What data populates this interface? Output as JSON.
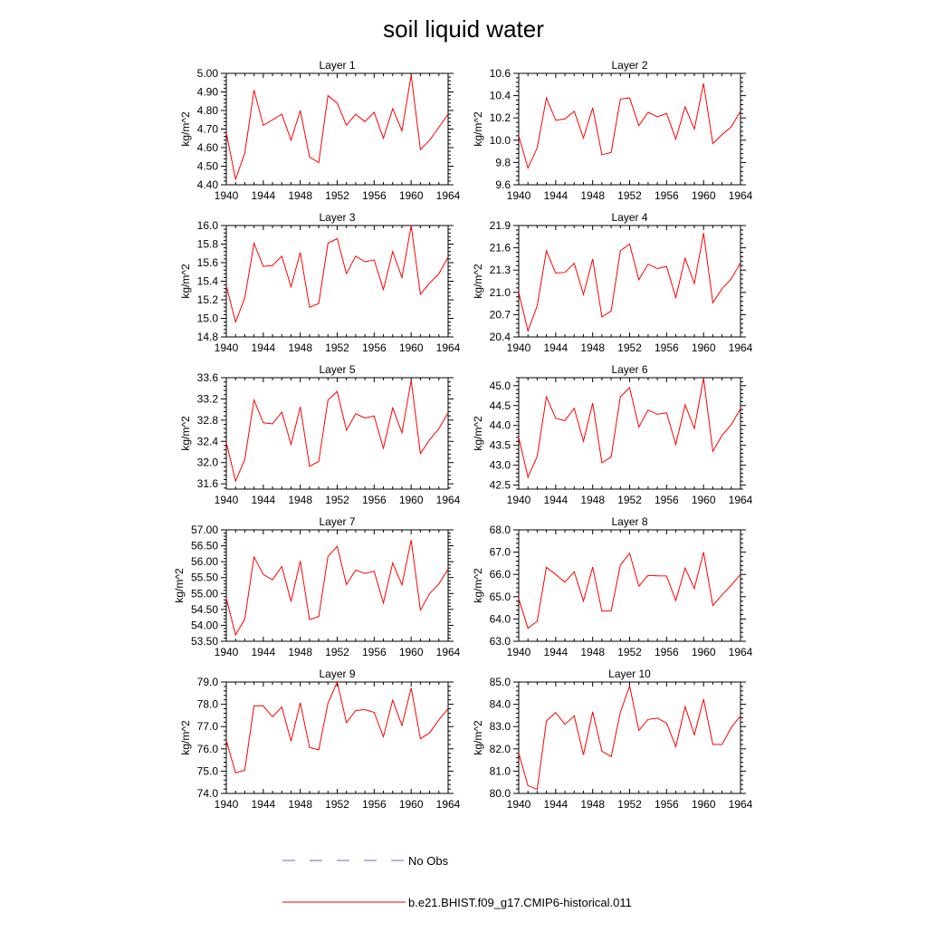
{
  "title": "soil liquid water",
  "legend": {
    "entries": [
      {
        "label": "No Obs",
        "color": "#6a6acd",
        "style": "dashed"
      },
      {
        "label": "b.e21.BHIST.f09_g17.CMIP6-historical.011",
        "color": "#ff0000",
        "style": "solid"
      }
    ]
  },
  "chart_data": [
    {
      "type": "line",
      "title": "Layer 1",
      "ylabel": "kg/m^2",
      "xlim": [
        1940,
        1964
      ],
      "ylim": [
        4.4,
        5.0
      ],
      "xticks": [
        "1940",
        "1944",
        "1948",
        "1952",
        "1956",
        "1960",
        "1964"
      ],
      "yticks": [
        "4.40",
        "4.50",
        "4.60",
        "4.70",
        "4.80",
        "4.90",
        "5.00"
      ],
      "series": [
        {
          "name": "b.e21.BHIST.f09_g17.CMIP6-historical.011",
          "color": "#ff0000",
          "x": [
            1940,
            1941,
            1942,
            1943,
            1944,
            1945,
            1946,
            1947,
            1948,
            1949,
            1950,
            1951,
            1952,
            1953,
            1954,
            1955,
            1956,
            1957,
            1958,
            1959,
            1960,
            1961,
            1962,
            1963,
            1964
          ],
          "y": [
            4.68,
            4.43,
            4.57,
            4.91,
            4.72,
            4.75,
            4.78,
            4.64,
            4.8,
            4.55,
            4.52,
            4.88,
            4.84,
            4.72,
            4.78,
            4.74,
            4.79,
            4.65,
            4.81,
            4.69,
            4.99,
            4.59,
            4.64,
            4.71,
            4.78
          ]
        }
      ]
    },
    {
      "type": "line",
      "title": "Layer 2",
      "ylabel": "kg/m^2",
      "xlim": [
        1940,
        1964
      ],
      "ylim": [
        9.6,
        10.6
      ],
      "xticks": [
        "1940",
        "1944",
        "1948",
        "1952",
        "1956",
        "1960",
        "1964"
      ],
      "yticks": [
        "9.6",
        "9.8",
        "10.0",
        "10.2",
        "10.4",
        "10.6"
      ],
      "series": [
        {
          "name": "b.e21.BHIST.f09_g17.CMIP6-historical.011",
          "color": "#ff0000",
          "x": [
            1940,
            1941,
            1942,
            1943,
            1944,
            1945,
            1946,
            1947,
            1948,
            1949,
            1950,
            1951,
            1952,
            1953,
            1954,
            1955,
            1956,
            1957,
            1958,
            1959,
            1960,
            1961,
            1962,
            1963,
            1964
          ],
          "y": [
            10.04,
            9.75,
            9.93,
            10.38,
            10.18,
            10.19,
            10.26,
            10.02,
            10.29,
            9.87,
            9.89,
            10.37,
            10.38,
            10.13,
            10.25,
            10.21,
            10.24,
            10.01,
            10.3,
            10.1,
            10.51,
            9.97,
            10.05,
            10.12,
            10.26
          ]
        }
      ]
    },
    {
      "type": "line",
      "title": "Layer 3",
      "ylabel": "kg/m^2",
      "xlim": [
        1940,
        1964
      ],
      "ylim": [
        14.8,
        16.0
      ],
      "xticks": [
        "1940",
        "1944",
        "1948",
        "1952",
        "1956",
        "1960",
        "1964"
      ],
      "yticks": [
        "14.8",
        "15.0",
        "15.2",
        "15.4",
        "15.6",
        "15.8",
        "16.0"
      ],
      "series": [
        {
          "name": "b.e21.BHIST.f09_g17.CMIP6-historical.011",
          "color": "#ff0000",
          "x": [
            1940,
            1941,
            1942,
            1943,
            1944,
            1945,
            1946,
            1947,
            1948,
            1949,
            1950,
            1951,
            1952,
            1953,
            1954,
            1955,
            1956,
            1957,
            1958,
            1959,
            1960,
            1961,
            1962,
            1963,
            1964
          ],
          "y": [
            15.35,
            14.96,
            15.22,
            15.81,
            15.56,
            15.57,
            15.67,
            15.34,
            15.71,
            15.12,
            15.16,
            15.81,
            15.86,
            15.48,
            15.67,
            15.61,
            15.63,
            15.31,
            15.72,
            15.44,
            16.0,
            15.26,
            15.38,
            15.48,
            15.66
          ]
        }
      ]
    },
    {
      "type": "line",
      "title": "Layer 4",
      "ylabel": "kg/m^2",
      "xlim": [
        1940,
        1964
      ],
      "ylim": [
        20.4,
        21.9
      ],
      "xticks": [
        "1940",
        "1944",
        "1948",
        "1952",
        "1956",
        "1960",
        "1964"
      ],
      "yticks": [
        "20.4",
        "20.7",
        "21.0",
        "21.3",
        "21.6",
        "21.9"
      ],
      "series": [
        {
          "name": "b.e21.BHIST.f09_g17.CMIP6-historical.011",
          "color": "#ff0000",
          "x": [
            1940,
            1941,
            1942,
            1943,
            1944,
            1945,
            1946,
            1947,
            1948,
            1949,
            1950,
            1951,
            1952,
            1953,
            1954,
            1955,
            1956,
            1957,
            1958,
            1959,
            1960,
            1961,
            1962,
            1963,
            1964
          ],
          "y": [
            21.0,
            20.48,
            20.82,
            21.56,
            21.26,
            21.27,
            21.39,
            20.97,
            21.45,
            20.67,
            20.75,
            21.56,
            21.65,
            21.17,
            21.38,
            21.32,
            21.35,
            20.93,
            21.46,
            21.12,
            21.8,
            20.86,
            21.05,
            21.18,
            21.4
          ]
        }
      ]
    },
    {
      "type": "line",
      "title": "Layer 5",
      "ylabel": "kg/m^2",
      "xlim": [
        1940,
        1964
      ],
      "ylim": [
        31.5,
        33.6
      ],
      "xticks": [
        "1940",
        "1944",
        "1948",
        "1952",
        "1956",
        "1960",
        "1964"
      ],
      "yticks": [
        "31.6",
        "32.0",
        "32.4",
        "32.8",
        "33.2",
        "33.6"
      ],
      "series": [
        {
          "name": "b.e21.BHIST.f09_g17.CMIP6-historical.011",
          "color": "#ff0000",
          "x": [
            1940,
            1941,
            1942,
            1943,
            1944,
            1945,
            1946,
            1947,
            1948,
            1949,
            1950,
            1951,
            1952,
            1953,
            1954,
            1955,
            1956,
            1957,
            1958,
            1959,
            1960,
            1961,
            1962,
            1963,
            1964
          ],
          "y": [
            32.38,
            31.65,
            32.06,
            33.18,
            32.75,
            32.73,
            32.95,
            32.34,
            33.05,
            31.93,
            32.02,
            33.18,
            33.34,
            32.61,
            32.92,
            32.84,
            32.88,
            32.27,
            33.03,
            32.56,
            33.55,
            32.17,
            32.43,
            32.64,
            32.94
          ]
        }
      ]
    },
    {
      "type": "line",
      "title": "Layer 6",
      "ylabel": "kg/m^2",
      "xlim": [
        1940,
        1964
      ],
      "ylim": [
        42.4,
        45.2
      ],
      "xticks": [
        "1940",
        "1944",
        "1948",
        "1952",
        "1956",
        "1960",
        "1964"
      ],
      "yticks": [
        "42.5",
        "43.0",
        "43.5",
        "44.0",
        "44.5",
        "45.0"
      ],
      "series": [
        {
          "name": "b.e21.BHIST.f09_g17.CMIP6-historical.011",
          "color": "#ff0000",
          "x": [
            1940,
            1941,
            1942,
            1943,
            1944,
            1945,
            1946,
            1947,
            1948,
            1949,
            1950,
            1951,
            1952,
            1953,
            1954,
            1955,
            1956,
            1957,
            1958,
            1959,
            1960,
            1961,
            1962,
            1963,
            1964
          ],
          "y": [
            43.7,
            42.7,
            43.22,
            44.72,
            44.18,
            44.12,
            44.43,
            43.6,
            44.56,
            43.06,
            43.21,
            44.72,
            44.95,
            43.96,
            44.39,
            44.28,
            44.32,
            43.52,
            44.52,
            43.92,
            45.19,
            43.35,
            43.75,
            44.02,
            44.42
          ]
        }
      ]
    },
    {
      "type": "line",
      "title": "Layer 7",
      "ylabel": "kg/m^2",
      "xlim": [
        1940,
        1964
      ],
      "ylim": [
        53.5,
        57.0
      ],
      "xticks": [
        "1940",
        "1944",
        "1948",
        "1952",
        "1956",
        "1960",
        "1964"
      ],
      "yticks": [
        "53.50",
        "54.00",
        "54.50",
        "55.00",
        "55.50",
        "56.00",
        "56.50",
        "57.00"
      ],
      "series": [
        {
          "name": "b.e21.BHIST.f09_g17.CMIP6-historical.011",
          "color": "#ff0000",
          "x": [
            1940,
            1941,
            1942,
            1943,
            1944,
            1945,
            1946,
            1947,
            1948,
            1949,
            1950,
            1951,
            1952,
            1953,
            1954,
            1955,
            1956,
            1957,
            1958,
            1959,
            1960,
            1961,
            1962,
            1963,
            1964
          ],
          "y": [
            54.85,
            53.7,
            54.2,
            56.15,
            55.6,
            55.43,
            55.85,
            54.75,
            56.02,
            54.18,
            54.28,
            56.17,
            56.48,
            55.28,
            55.74,
            55.63,
            55.7,
            54.7,
            55.96,
            55.27,
            56.68,
            54.48,
            55.0,
            55.3,
            55.77
          ]
        }
      ]
    },
    {
      "type": "line",
      "title": "Layer 8",
      "ylabel": "kg/m^2",
      "xlim": [
        1940,
        1964
      ],
      "ylim": [
        63.0,
        68.0
      ],
      "xticks": [
        "1940",
        "1944",
        "1948",
        "1952",
        "1956",
        "1960",
        "1964"
      ],
      "yticks": [
        "63.0",
        "64.0",
        "65.0",
        "66.0",
        "67.0",
        "68.0"
      ],
      "series": [
        {
          "name": "b.e21.BHIST.f09_g17.CMIP6-historical.011",
          "color": "#ff0000",
          "x": [
            1940,
            1941,
            1942,
            1943,
            1944,
            1945,
            1946,
            1947,
            1948,
            1949,
            1950,
            1951,
            1952,
            1953,
            1954,
            1955,
            1956,
            1957,
            1958,
            1959,
            1960,
            1961,
            1962,
            1963,
            1964
          ],
          "y": [
            64.92,
            63.58,
            63.9,
            66.32,
            66.0,
            65.65,
            66.12,
            64.8,
            66.33,
            64.35,
            64.36,
            66.42,
            66.95,
            65.47,
            65.96,
            65.94,
            65.93,
            64.83,
            66.29,
            65.37,
            67.0,
            64.6,
            65.08,
            65.52,
            66.0
          ]
        }
      ]
    },
    {
      "type": "line",
      "title": "Layer 9",
      "ylabel": "kg/m^2",
      "xlim": [
        1940,
        1964
      ],
      "ylim": [
        74.0,
        79.0
      ],
      "xticks": [
        "1940",
        "1944",
        "1948",
        "1952",
        "1956",
        "1960",
        "1964"
      ],
      "yticks": [
        "74.0",
        "75.0",
        "76.0",
        "77.0",
        "78.0",
        "79.0"
      ],
      "series": [
        {
          "name": "b.e21.BHIST.f09_g17.CMIP6-historical.011",
          "color": "#ff0000",
          "x": [
            1940,
            1941,
            1942,
            1943,
            1944,
            1945,
            1946,
            1947,
            1948,
            1949,
            1950,
            1951,
            1952,
            1953,
            1954,
            1955,
            1956,
            1957,
            1958,
            1959,
            1960,
            1961,
            1962,
            1963,
            1964
          ],
          "y": [
            76.38,
            74.92,
            75.05,
            77.93,
            77.93,
            77.44,
            77.88,
            76.34,
            78.07,
            76.07,
            75.95,
            78.05,
            79.0,
            77.18,
            77.72,
            77.76,
            77.64,
            76.54,
            78.19,
            77.05,
            78.73,
            76.45,
            76.72,
            77.31,
            77.8
          ]
        }
      ]
    },
    {
      "type": "line",
      "title": "Layer 10",
      "ylabel": "kg/m^2",
      "xlim": [
        1940,
        1964
      ],
      "ylim": [
        80.0,
        85.0
      ],
      "xticks": [
        "1940",
        "1944",
        "1948",
        "1952",
        "1956",
        "1960",
        "1964"
      ],
      "yticks": [
        "80.0",
        "81.0",
        "82.0",
        "83.0",
        "84.0",
        "85.0"
      ],
      "series": [
        {
          "name": "b.e21.BHIST.f09_g17.CMIP6-historical.011",
          "color": "#ff0000",
          "x": [
            1940,
            1941,
            1942,
            1943,
            1944,
            1945,
            1946,
            1947,
            1948,
            1949,
            1950,
            1951,
            1952,
            1953,
            1954,
            1955,
            1956,
            1957,
            1958,
            1959,
            1960,
            1961,
            1962,
            1963,
            1964
          ],
          "y": [
            81.8,
            80.35,
            80.18,
            83.25,
            83.63,
            83.1,
            83.48,
            81.73,
            83.66,
            81.9,
            81.65,
            83.65,
            84.82,
            82.83,
            83.32,
            83.38,
            83.16,
            82.1,
            83.9,
            82.63,
            84.23,
            82.2,
            82.2,
            82.96,
            83.48
          ]
        }
      ]
    }
  ]
}
